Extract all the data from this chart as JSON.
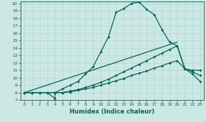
{
  "xlabel": "Humidex (Indice chaleur)",
  "xlim": [
    -0.5,
    23.5
  ],
  "ylim": [
    7,
    20.3
  ],
  "xticks": [
    0,
    1,
    2,
    3,
    4,
    5,
    6,
    7,
    8,
    9,
    10,
    11,
    12,
    13,
    14,
    15,
    16,
    17,
    18,
    19,
    20,
    21,
    22,
    23
  ],
  "yticks": [
    7,
    8,
    9,
    10,
    11,
    12,
    13,
    14,
    15,
    16,
    17,
    18,
    19,
    20
  ],
  "bg_color": "#cce8e4",
  "grid_color": "#b0d8d0",
  "line_color": "#006655",
  "curve1_x": [
    0,
    1,
    2,
    3,
    4,
    4,
    5,
    6,
    7,
    8,
    9,
    10,
    11,
    12,
    13,
    14,
    15,
    16,
    17,
    18,
    19,
    20,
    21,
    22,
    23
  ],
  "curve1_y": [
    8.0,
    8.0,
    8.0,
    8.0,
    7.2,
    8.0,
    8.5,
    9.0,
    9.5,
    10.5,
    11.5,
    13.5,
    15.5,
    18.8,
    19.3,
    20.0,
    20.2,
    19.2,
    18.5,
    16.5,
    14.8,
    14.3,
    11.2,
    10.5,
    9.5
  ],
  "curve2_x": [
    0,
    1,
    2,
    3,
    4,
    5,
    6,
    7,
    8,
    9,
    10,
    11,
    12,
    13,
    14,
    15,
    16,
    17,
    18,
    19,
    20,
    21,
    22,
    23
  ],
  "curve2_y": [
    8.0,
    8.0,
    8.0,
    8.0,
    8.0,
    8.0,
    8.2,
    8.4,
    8.7,
    9.0,
    9.4,
    9.8,
    10.3,
    10.8,
    11.3,
    11.8,
    12.3,
    12.8,
    13.3,
    13.8,
    14.3,
    11.2,
    11.0,
    11.0
  ],
  "curve3_x": [
    0,
    1,
    2,
    3,
    4,
    5,
    6,
    7,
    8,
    9,
    10,
    11,
    12,
    13,
    14,
    15,
    16,
    17,
    18,
    19,
    20,
    21,
    22,
    23
  ],
  "curve3_y": [
    8.0,
    8.0,
    8.0,
    8.0,
    8.0,
    8.0,
    8.1,
    8.3,
    8.5,
    8.7,
    9.0,
    9.3,
    9.6,
    9.9,
    10.3,
    10.6,
    10.9,
    11.3,
    11.6,
    12.0,
    12.3,
    11.2,
    10.8,
    10.3
  ],
  "curve4_x": [
    0,
    20
  ],
  "curve4_y": [
    8.0,
    14.8
  ]
}
